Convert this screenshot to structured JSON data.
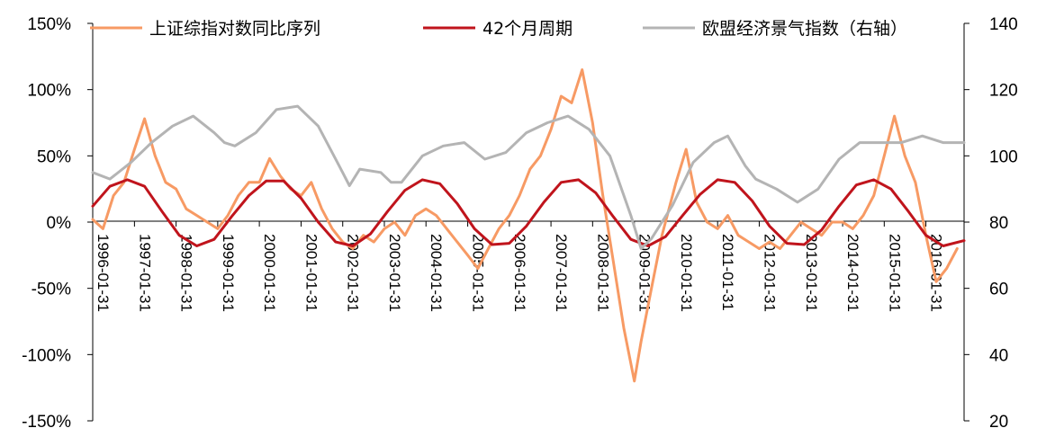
{
  "chart_data": {
    "type": "line",
    "title": "",
    "xlabel": "",
    "ylabel_left": "",
    "ylabel_right": "",
    "x_range": [
      "1996-01-31",
      "2016-12-31"
    ],
    "x_ticks": [
      "1996-01-31",
      "1997-01-31",
      "1998-01-31",
      "1999-01-31",
      "2000-01-31",
      "2001-01-31",
      "2002-01-31",
      "2003-01-31",
      "2004-01-31",
      "2005-01-31",
      "2006-01-31",
      "2007-01-31",
      "2008-01-31",
      "2009-01-31",
      "2010-01-31",
      "2011-01-31",
      "2012-01-31",
      "2013-01-31",
      "2014-01-31",
      "2015-01-31",
      "2016-01-31"
    ],
    "y_left": {
      "range": [
        -1.5,
        1.5
      ],
      "ticks": [
        -1.5,
        -1.0,
        -0.5,
        0,
        0.5,
        1.0,
        1.5
      ],
      "tick_labels": [
        "-150%",
        "-100%",
        "-50%",
        "0%",
        "50%",
        "100%",
        "150%"
      ]
    },
    "y_right": {
      "range": [
        20,
        140
      ],
      "ticks": [
        20,
        40,
        60,
        80,
        100,
        120,
        140
      ],
      "tick_labels": [
        "20",
        "40",
        "60",
        "80",
        "100",
        "120",
        "140"
      ]
    },
    "grid": false,
    "legend_position": "top",
    "series": [
      {
        "name": "上证综指对数同比序列",
        "axis": "left",
        "color": "#F79A64",
        "points": [
          [
            "1996-01-31",
            0.02
          ],
          [
            "1996-04-30",
            -0.05
          ],
          [
            "1996-07-31",
            0.2
          ],
          [
            "1996-10-31",
            0.3
          ],
          [
            "1997-01-31",
            0.55
          ],
          [
            "1997-04-30",
            0.78
          ],
          [
            "1997-07-31",
            0.5
          ],
          [
            "1997-10-31",
            0.3
          ],
          [
            "1998-01-31",
            0.25
          ],
          [
            "1998-04-30",
            0.1
          ],
          [
            "1998-07-31",
            0.05
          ],
          [
            "1998-10-31",
            0.0
          ],
          [
            "1999-01-31",
            -0.05
          ],
          [
            "1999-04-30",
            0.05
          ],
          [
            "1999-07-31",
            0.2
          ],
          [
            "1999-10-31",
            0.3
          ],
          [
            "2000-01-31",
            0.3
          ],
          [
            "2000-04-30",
            0.48
          ],
          [
            "2000-07-31",
            0.35
          ],
          [
            "2000-10-31",
            0.25
          ],
          [
            "2001-01-31",
            0.2
          ],
          [
            "2001-04-30",
            0.3
          ],
          [
            "2001-07-31",
            0.1
          ],
          [
            "2001-10-31",
            -0.05
          ],
          [
            "2002-01-31",
            -0.15
          ],
          [
            "2002-04-30",
            -0.2
          ],
          [
            "2002-07-31",
            -0.1
          ],
          [
            "2002-10-31",
            -0.15
          ],
          [
            "2003-01-31",
            -0.05
          ],
          [
            "2003-04-30",
            0.0
          ],
          [
            "2003-07-31",
            -0.1
          ],
          [
            "2003-10-31",
            0.05
          ],
          [
            "2004-01-31",
            0.1
          ],
          [
            "2004-04-30",
            0.05
          ],
          [
            "2004-07-31",
            -0.05
          ],
          [
            "2004-10-31",
            -0.15
          ],
          [
            "2005-01-31",
            -0.25
          ],
          [
            "2005-04-30",
            -0.35
          ],
          [
            "2005-07-31",
            -0.2
          ],
          [
            "2005-10-31",
            -0.05
          ],
          [
            "2006-01-31",
            0.05
          ],
          [
            "2006-04-30",
            0.2
          ],
          [
            "2006-07-31",
            0.4
          ],
          [
            "2006-10-31",
            0.5
          ],
          [
            "2007-01-31",
            0.7
          ],
          [
            "2007-04-30",
            0.95
          ],
          [
            "2007-07-31",
            0.9
          ],
          [
            "2007-10-31",
            1.15
          ],
          [
            "2008-01-31",
            0.75
          ],
          [
            "2008-04-30",
            0.2
          ],
          [
            "2008-07-31",
            -0.3
          ],
          [
            "2008-10-31",
            -0.8
          ],
          [
            "2009-01-31",
            -1.2
          ],
          [
            "2009-03-31",
            -0.9
          ],
          [
            "2009-06-30",
            -0.5
          ],
          [
            "2009-09-30",
            -0.1
          ],
          [
            "2010-01-31",
            0.3
          ],
          [
            "2010-04-30",
            0.55
          ],
          [
            "2010-07-31",
            0.15
          ],
          [
            "2010-10-31",
            0.0
          ],
          [
            "2011-01-31",
            -0.05
          ],
          [
            "2011-04-30",
            0.05
          ],
          [
            "2011-07-31",
            -0.1
          ],
          [
            "2011-10-31",
            -0.15
          ],
          [
            "2012-01-31",
            -0.2
          ],
          [
            "2012-04-30",
            -0.15
          ],
          [
            "2012-07-31",
            -0.2
          ],
          [
            "2012-10-31",
            -0.1
          ],
          [
            "2013-01-31",
            0.0
          ],
          [
            "2013-04-30",
            -0.05
          ],
          [
            "2013-07-31",
            -0.1
          ],
          [
            "2013-10-31",
            0.0
          ],
          [
            "2014-01-31",
            0.0
          ],
          [
            "2014-04-30",
            -0.05
          ],
          [
            "2014-07-31",
            0.05
          ],
          [
            "2014-10-31",
            0.2
          ],
          [
            "2015-01-31",
            0.5
          ],
          [
            "2015-04-30",
            0.8
          ],
          [
            "2015-07-31",
            0.5
          ],
          [
            "2015-10-31",
            0.3
          ],
          [
            "2016-01-31",
            -0.1
          ],
          [
            "2016-04-30",
            -0.45
          ],
          [
            "2016-07-31",
            -0.35
          ],
          [
            "2016-10-31",
            -0.2
          ]
        ]
      },
      {
        "name": "42个月周期",
        "axis": "left",
        "color": "#C0141C",
        "period_months": 42,
        "points": [
          [
            "1996-01-31",
            0.12
          ],
          [
            "1996-06-30",
            0.27
          ],
          [
            "1996-11-30",
            0.32
          ],
          [
            "1997-04-30",
            0.27
          ],
          [
            "1997-09-30",
            0.08
          ],
          [
            "1998-02-28",
            -0.1
          ],
          [
            "1998-07-31",
            -0.18
          ],
          [
            "1998-12-31",
            -0.13
          ],
          [
            "1999-05-31",
            0.04
          ],
          [
            "1999-10-31",
            0.2
          ],
          [
            "2000-03-31",
            0.31
          ],
          [
            "2000-08-31",
            0.31
          ],
          [
            "2001-01-31",
            0.18
          ],
          [
            "2001-06-30",
            0.0
          ],
          [
            "2001-11-30",
            -0.15
          ],
          [
            "2002-04-30",
            -0.18
          ],
          [
            "2002-09-30",
            -0.09
          ],
          [
            "2003-02-28",
            0.08
          ],
          [
            "2003-07-31",
            0.24
          ],
          [
            "2003-12-31",
            0.32
          ],
          [
            "2004-05-31",
            0.29
          ],
          [
            "2004-10-31",
            0.14
          ],
          [
            "2005-03-31",
            -0.05
          ],
          [
            "2005-08-31",
            -0.17
          ],
          [
            "2006-01-31",
            -0.16
          ],
          [
            "2006-06-30",
            -0.03
          ],
          [
            "2006-11-30",
            0.15
          ],
          [
            "2007-04-30",
            0.3
          ],
          [
            "2007-09-30",
            0.32
          ],
          [
            "2008-02-28",
            0.22
          ],
          [
            "2008-07-31",
            0.04
          ],
          [
            "2008-12-31",
            -0.13
          ],
          [
            "2009-05-31",
            -0.18
          ],
          [
            "2009-10-31",
            -0.11
          ],
          [
            "2010-03-31",
            0.05
          ],
          [
            "2010-08-31",
            0.21
          ],
          [
            "2011-01-31",
            0.32
          ],
          [
            "2011-06-30",
            0.3
          ],
          [
            "2011-11-30",
            0.16
          ],
          [
            "2012-04-30",
            -0.03
          ],
          [
            "2012-09-30",
            -0.16
          ],
          [
            "2013-02-28",
            -0.17
          ],
          [
            "2013-07-31",
            -0.06
          ],
          [
            "2013-12-31",
            0.12
          ],
          [
            "2014-05-31",
            0.28
          ],
          [
            "2014-10-31",
            0.32
          ],
          [
            "2015-03-31",
            0.25
          ],
          [
            "2015-08-31",
            0.08
          ],
          [
            "2016-01-31",
            -0.1
          ],
          [
            "2016-06-30",
            -0.18
          ],
          [
            "2016-12-31",
            -0.14
          ]
        ]
      },
      {
        "name": "欧盟经济景气指数（右轴）",
        "axis": "right",
        "color": "#B4B4B4",
        "points": [
          [
            "1996-01-31",
            95
          ],
          [
            "1996-06-30",
            93
          ],
          [
            "1996-12-31",
            98
          ],
          [
            "1997-06-30",
            104
          ],
          [
            "1997-12-31",
            109
          ],
          [
            "1998-06-30",
            112
          ],
          [
            "1998-12-31",
            107
          ],
          [
            "1999-03-31",
            104
          ],
          [
            "1999-06-30",
            103
          ],
          [
            "1999-12-31",
            107
          ],
          [
            "2000-06-30",
            114
          ],
          [
            "2000-12-31",
            115
          ],
          [
            "2001-06-30",
            109
          ],
          [
            "2001-12-31",
            97
          ],
          [
            "2002-03-31",
            91
          ],
          [
            "2002-06-30",
            96
          ],
          [
            "2002-12-31",
            95
          ],
          [
            "2003-03-31",
            92
          ],
          [
            "2003-06-30",
            92
          ],
          [
            "2003-12-31",
            100
          ],
          [
            "2004-06-30",
            103
          ],
          [
            "2004-12-31",
            104
          ],
          [
            "2005-06-30",
            99
          ],
          [
            "2005-12-31",
            101
          ],
          [
            "2006-06-30",
            107
          ],
          [
            "2006-12-31",
            110
          ],
          [
            "2007-06-30",
            112
          ],
          [
            "2007-12-31",
            108
          ],
          [
            "2008-06-30",
            100
          ],
          [
            "2008-12-31",
            82
          ],
          [
            "2009-03-31",
            72
          ],
          [
            "2009-06-30",
            75
          ],
          [
            "2009-12-31",
            85
          ],
          [
            "2010-06-30",
            98
          ],
          [
            "2010-12-31",
            104
          ],
          [
            "2011-04-30",
            106
          ],
          [
            "2011-09-30",
            97
          ],
          [
            "2011-12-31",
            93
          ],
          [
            "2012-06-30",
            90
          ],
          [
            "2012-12-31",
            86
          ],
          [
            "2013-06-30",
            90
          ],
          [
            "2013-12-31",
            99
          ],
          [
            "2014-06-30",
            104
          ],
          [
            "2014-12-31",
            104
          ],
          [
            "2015-06-30",
            104
          ],
          [
            "2015-12-31",
            106
          ],
          [
            "2016-06-30",
            104
          ],
          [
            "2016-12-31",
            104
          ]
        ]
      }
    ]
  }
}
